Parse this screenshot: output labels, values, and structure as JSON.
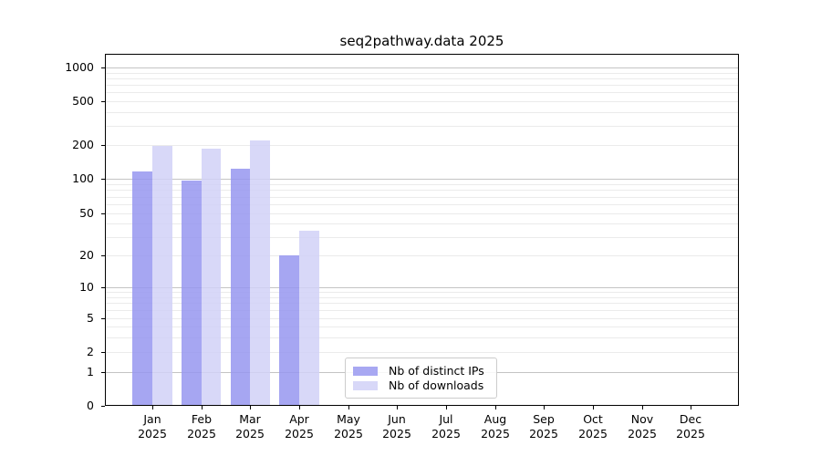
{
  "figure": {
    "background": "#ffffff"
  },
  "chart_data": {
    "type": "bar",
    "title": "seq2pathway.data 2025",
    "categories": [
      "Jan 2025",
      "Feb 2025",
      "Mar 2025",
      "Apr 2025",
      "May 2025",
      "Jun 2025",
      "Jul 2025",
      "Aug 2025",
      "Sep 2025",
      "Oct 2025",
      "Nov 2025",
      "Dec 2025"
    ],
    "series": [
      {
        "name": "Nb of distinct IPs",
        "color": "rgba(150,150,240,0.85)",
        "swatch_color": "#a8a8f2",
        "values": [
          117,
          97,
          124,
          20,
          0,
          0,
          0,
          0,
          0,
          0,
          0,
          0
        ]
      },
      {
        "name": "Nb of downloads",
        "color": "rgba(209,209,247,0.85)",
        "swatch_color": "#d8d8f8",
        "values": [
          198,
          187,
          219,
          34,
          0,
          0,
          0,
          0,
          0,
          0,
          0,
          0
        ]
      }
    ],
    "xlabel": "",
    "ylabel": "",
    "yscale": "symlog",
    "y_ticks": [
      0,
      1,
      2,
      5,
      10,
      20,
      50,
      100,
      200,
      500,
      1000
    ],
    "ylim": [
      0,
      1300
    ],
    "grid": "horizontal gridlines; major at 1,10,100,1000; minor at 2-9 of each decade",
    "legend_position": "inside, lower-center-left",
    "grid_major_color": "#c4c4c4",
    "grid_minor_color": "#ebebeb"
  }
}
